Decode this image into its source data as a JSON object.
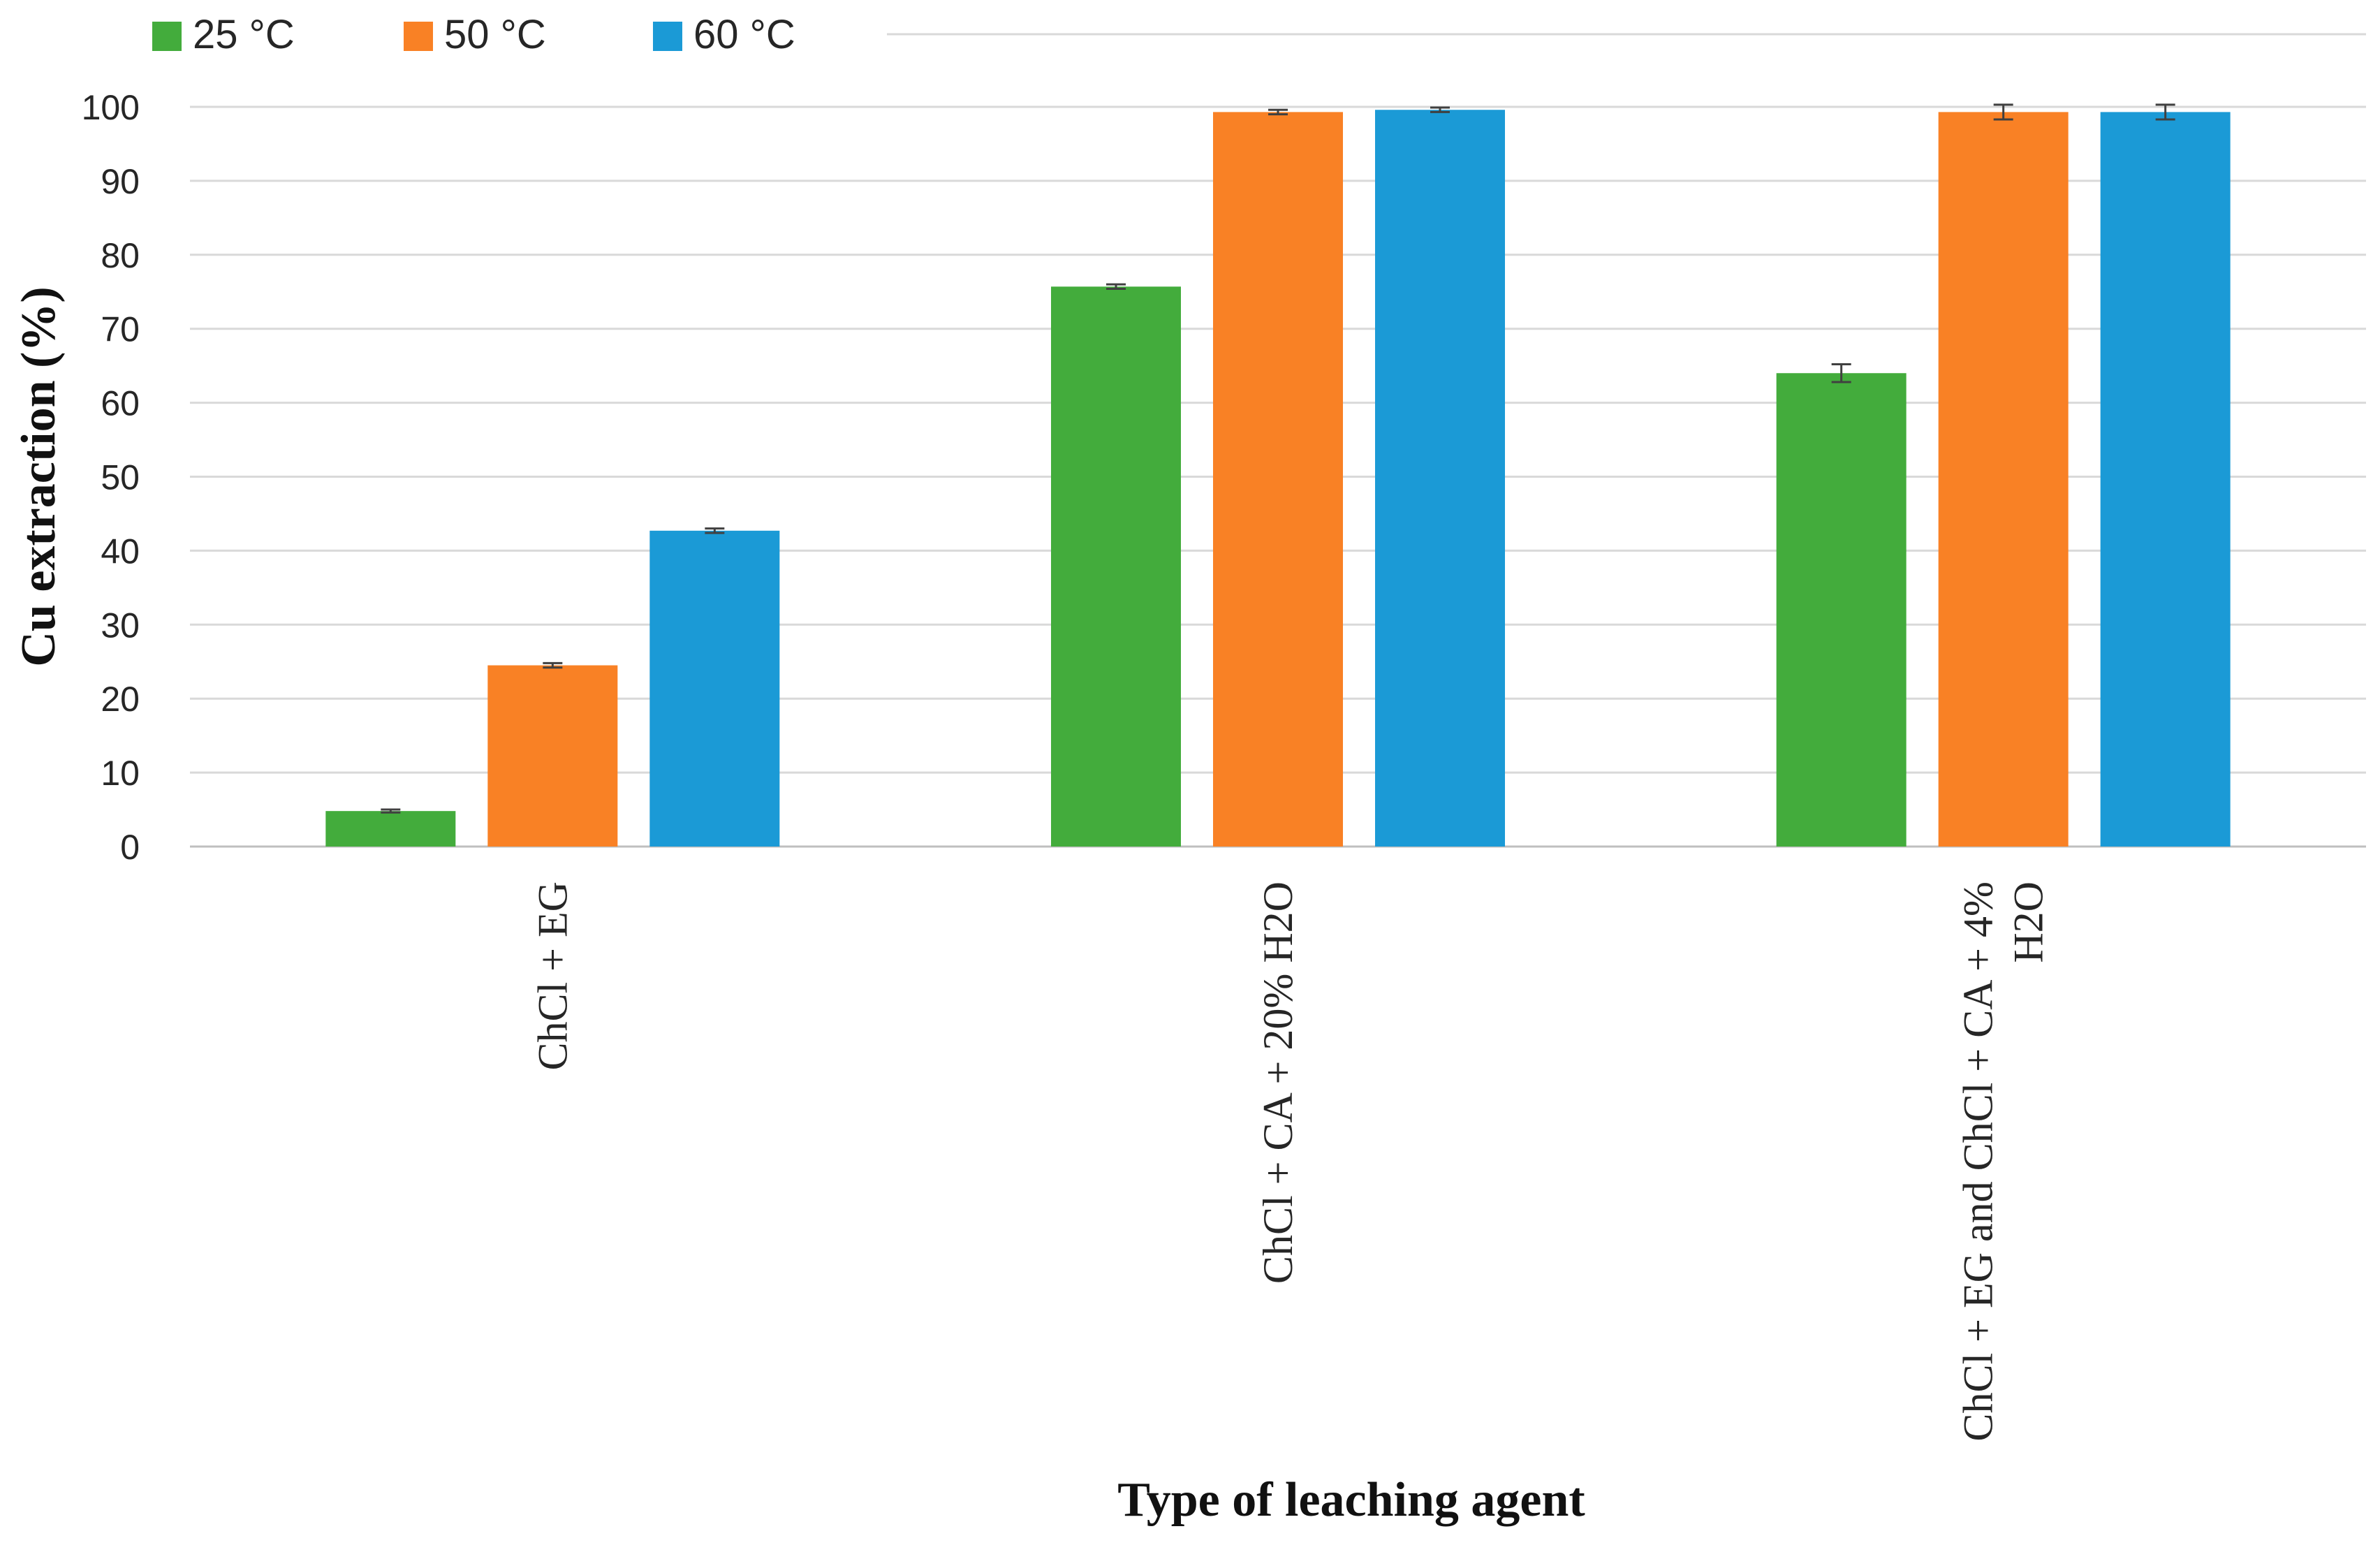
{
  "chart_data": {
    "type": "bar",
    "title": "",
    "xlabel": "Type of leaching agent",
    "ylabel": "Cu extraction (%)",
    "ylim": [
      0,
      100
    ],
    "yticks": [
      "0",
      "10",
      "20",
      "30",
      "40",
      "50",
      "60",
      "70",
      "80",
      "90",
      "100"
    ],
    "grid": true,
    "legend_position": "top-left",
    "categories": [
      [
        "ChCl + EG"
      ],
      [
        "ChCl + CA + 20% H2O"
      ],
      [
        "ChCl + EG and ChCl + CA + 4%",
        "H2O"
      ]
    ],
    "series": [
      {
        "name": "25 °C",
        "color": "#43ac3c",
        "values": [
          4.8,
          75.7,
          64.0
        ],
        "errors": [
          0.2,
          0.3,
          1.2
        ]
      },
      {
        "name": "50 °C",
        "color": "#f98125",
        "values": [
          24.5,
          99.3,
          99.3
        ],
        "errors": [
          0.3,
          0.3,
          1.0
        ]
      },
      {
        "name": "60 °C",
        "color": "#1b9ad6",
        "values": [
          42.7,
          99.6,
          99.3
        ],
        "errors": [
          0.3,
          0.3,
          1.0
        ]
      }
    ]
  }
}
